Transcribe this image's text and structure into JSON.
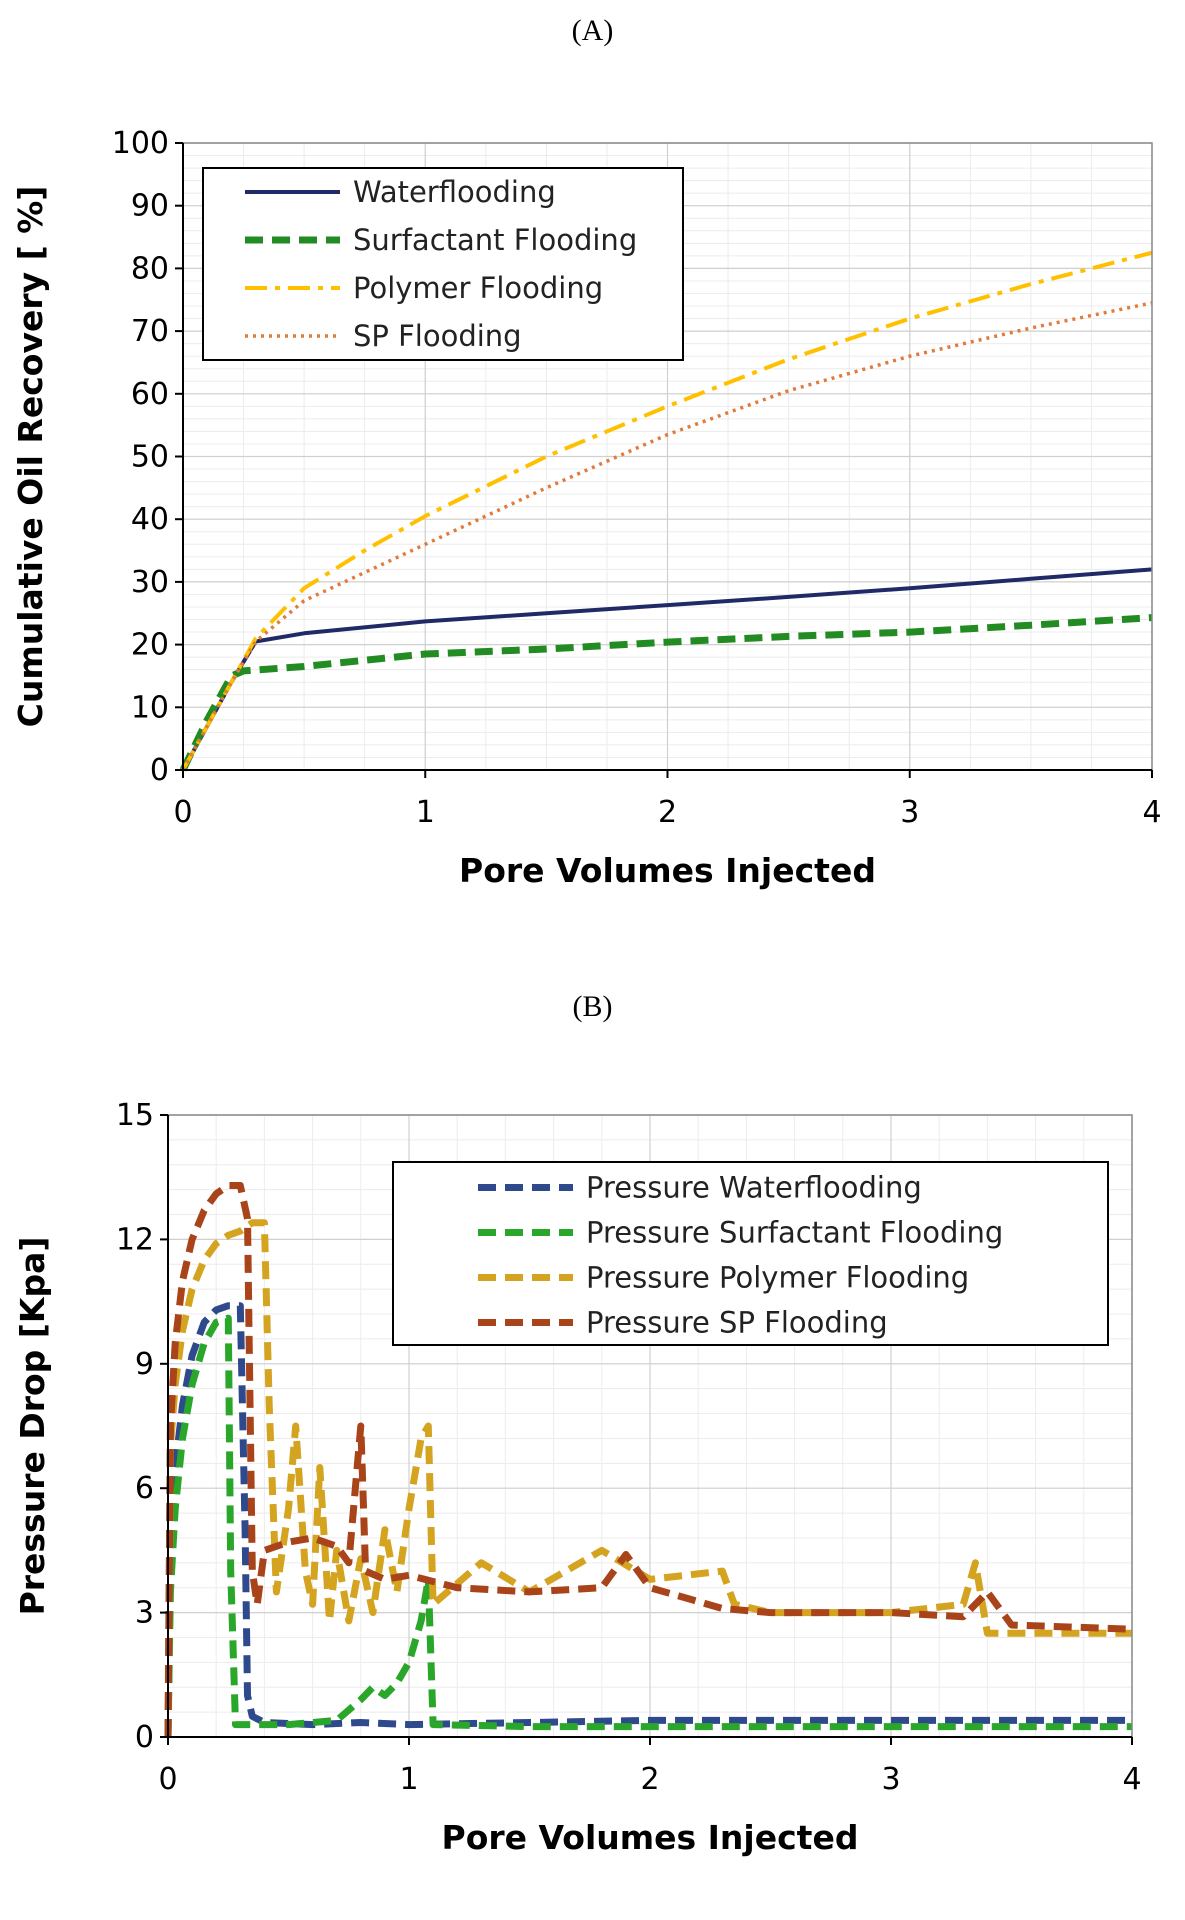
{
  "chart_data": [
    {
      "panel": "(A)",
      "type": "line",
      "xlabel": "Pore Volumes Injected",
      "ylabel": "Cumulative Oil Recovery [ %]",
      "xlim": [
        0,
        4
      ],
      "ylim": [
        0,
        100
      ],
      "xticks": [
        0,
        1,
        2,
        3,
        4
      ],
      "yticks": [
        0,
        10,
        20,
        30,
        40,
        50,
        60,
        70,
        80,
        90,
        100
      ],
      "grid": true,
      "legend_position": "top-left",
      "series": [
        {
          "name": "Waterflooding",
          "color": "#1f2a66",
          "style": "solid",
          "x": [
            0,
            0.1,
            0.2,
            0.3,
            0.5,
            1,
            1.5,
            2,
            2.5,
            3,
            3.5,
            4
          ],
          "y": [
            0,
            7,
            14,
            20.5,
            21.8,
            23.7,
            25,
            26.3,
            27.6,
            29,
            30.5,
            32
          ]
        },
        {
          "name": "Surfactant Flooding",
          "color": "#228b22",
          "style": "dashed",
          "x": [
            0,
            0.1,
            0.2,
            0.25,
            0.5,
            1,
            1.5,
            2,
            2.5,
            3,
            3.5,
            4
          ],
          "y": [
            0,
            8,
            15,
            15.8,
            16.5,
            18.5,
            19.3,
            20.4,
            21.3,
            22,
            23.1,
            24.3
          ]
        },
        {
          "name": "Polymer Flooding",
          "color": "#ffc000",
          "style": "dashdot",
          "x": [
            0,
            0.1,
            0.2,
            0.3,
            0.5,
            0.75,
            1,
            1.5,
            2,
            2.5,
            3,
            3.5,
            4
          ],
          "y": [
            0,
            7,
            14,
            21,
            29,
            35,
            40.5,
            50,
            58,
            65.5,
            72,
            77.5,
            82.5
          ]
        },
        {
          "name": "SP Flooding",
          "color": "#e07b39",
          "style": "dotted",
          "x": [
            0,
            0.1,
            0.2,
            0.3,
            0.5,
            0.75,
            1,
            1.5,
            2,
            2.5,
            3,
            3.5,
            4
          ],
          "y": [
            0,
            7,
            14,
            20.5,
            27,
            31.5,
            36,
            45,
            53.5,
            60.5,
            66,
            70.5,
            74.5
          ]
        }
      ]
    },
    {
      "panel": "(B)",
      "type": "line",
      "xlabel": "Pore Volumes Injected",
      "ylabel": "Pressure Drop [Kpa]",
      "xlim": [
        0,
        4
      ],
      "ylim": [
        0,
        15
      ],
      "xticks": [
        0,
        1,
        2,
        3,
        4
      ],
      "yticks": [
        0,
        3,
        6,
        9,
        12,
        15
      ],
      "grid": true,
      "legend_position": "top-right",
      "series": [
        {
          "name": "Pressure Waterflooding",
          "color": "#2e4a8c",
          "style": "dashed",
          "x": [
            0,
            0.01,
            0.03,
            0.06,
            0.1,
            0.15,
            0.2,
            0.25,
            0.3,
            0.32,
            0.33,
            0.35,
            0.4,
            0.6,
            0.8,
            1,
            1.5,
            2,
            2.5,
            3,
            3.5,
            4
          ],
          "y": [
            0,
            4.5,
            6.5,
            8,
            9.2,
            10,
            10.3,
            10.4,
            10.4,
            5,
            1,
            0.5,
            0.35,
            0.3,
            0.35,
            0.3,
            0.35,
            0.4,
            0.4,
            0.4,
            0.4,
            0.4
          ]
        },
        {
          "name": "Pressure Surfactant Flooding",
          "color": "#2aa62a",
          "style": "dashed",
          "x": [
            0,
            0.01,
            0.03,
            0.06,
            0.1,
            0.15,
            0.2,
            0.25,
            0.26,
            0.28,
            0.5,
            0.7,
            0.8,
            0.85,
            0.9,
            0.95,
            1.0,
            1.05,
            1.08,
            1.1,
            1.5,
            2,
            2.5,
            3,
            3.5,
            4
          ],
          "y": [
            0,
            3.5,
            5.5,
            7.2,
            8.5,
            9.5,
            10,
            10.1,
            4,
            0.3,
            0.3,
            0.4,
            0.9,
            1.2,
            1.0,
            1.3,
            1.8,
            2.8,
            3.8,
            0.3,
            0.25,
            0.25,
            0.25,
            0.25,
            0.25,
            0.25
          ]
        },
        {
          "name": "Pressure Polymer Flooding",
          "color": "#d4a320",
          "style": "dashed",
          "x": [
            0,
            0.01,
            0.03,
            0.06,
            0.1,
            0.15,
            0.2,
            0.25,
            0.3,
            0.35,
            0.4,
            0.42,
            0.45,
            0.5,
            0.53,
            0.57,
            0.6,
            0.63,
            0.67,
            0.7,
            0.75,
            0.8,
            0.85,
            0.9,
            0.95,
            1.0,
            1.05,
            1.08,
            1.1,
            1.3,
            1.5,
            1.8,
            2.0,
            2.3,
            2.35,
            2.5,
            3.0,
            3.3,
            3.35,
            3.4,
            3.5,
            4.0
          ],
          "y": [
            0,
            7,
            8.5,
            9.8,
            10.8,
            11.5,
            11.9,
            12.1,
            12.2,
            12.4,
            12.4,
            8,
            3.5,
            5.5,
            7.5,
            4,
            3.2,
            6.5,
            2.8,
            4.5,
            2.8,
            4.3,
            3,
            5,
            3.5,
            5.5,
            7.2,
            7.5,
            3.2,
            4.2,
            3.5,
            4.5,
            3.8,
            4.0,
            3.2,
            3.0,
            3.0,
            3.2,
            4.2,
            2.5,
            2.5,
            2.5
          ]
        },
        {
          "name": "Pressure SP Flooding",
          "color": "#a8431a",
          "style": "dashed",
          "x": [
            0,
            0.01,
            0.03,
            0.06,
            0.1,
            0.15,
            0.2,
            0.25,
            0.3,
            0.33,
            0.35,
            0.37,
            0.4,
            0.5,
            0.6,
            0.7,
            0.75,
            0.8,
            0.82,
            0.9,
            1.0,
            1.2,
            1.5,
            1.8,
            1.9,
            2.0,
            2.3,
            2.5,
            3.0,
            3.3,
            3.4,
            3.5,
            4.0
          ],
          "y": [
            0,
            7.5,
            9.5,
            11,
            12,
            12.7,
            13.1,
            13.3,
            13.3,
            12.5,
            4,
            3.2,
            4.5,
            4.7,
            4.8,
            4.6,
            4.2,
            7.5,
            4,
            3.8,
            3.9,
            3.6,
            3.5,
            3.6,
            4.4,
            3.6,
            3.1,
            3.0,
            3.0,
            2.9,
            3.5,
            2.7,
            2.6
          ]
        }
      ]
    }
  ]
}
